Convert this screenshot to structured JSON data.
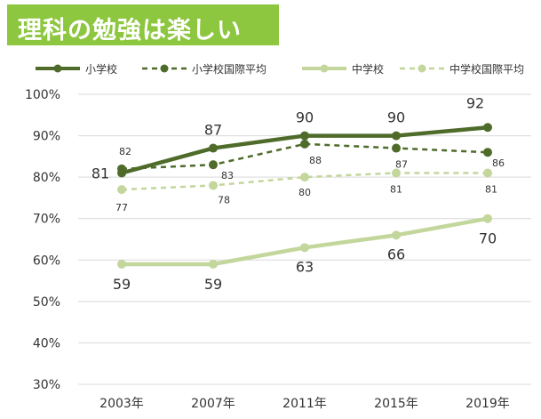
{
  "title": "理科の勉強は楽しい",
  "chart_data": {
    "type": "line",
    "title": "理科の勉強は楽しい",
    "categories": [
      "2003年",
      "2007年",
      "2011年",
      "2015年",
      "2019年"
    ],
    "y_ticks": [
      "30%",
      "40%",
      "50%",
      "60%",
      "70%",
      "80%",
      "90%",
      "100%"
    ],
    "ylim": [
      30,
      100
    ],
    "grid": true,
    "legend_position": "top",
    "series": [
      {
        "name": "小学校",
        "values": [
          81,
          87,
          90,
          90,
          92
        ],
        "labels": [
          "81",
          "87",
          "90",
          "90",
          "92"
        ],
        "color": "#4e6b2a",
        "dashed": false,
        "label_style": "large"
      },
      {
        "name": "小学校国際平均",
        "values": [
          82,
          83,
          88,
          87,
          86
        ],
        "labels": [
          "82",
          "83",
          "88",
          "87",
          "86"
        ],
        "color": "#4e6b2a",
        "dashed": true,
        "label_style": "small"
      },
      {
        "name": "中学校",
        "values": [
          59,
          59,
          63,
          66,
          70
        ],
        "labels": [
          "59",
          "59",
          "63",
          "66",
          "70"
        ],
        "color": "#c3d69b",
        "dashed": false,
        "label_style": "large"
      },
      {
        "name": "中学校国際平均",
        "values": [
          77,
          78,
          80,
          81,
          81
        ],
        "labels": [
          "77",
          "78",
          "80",
          "81",
          "81"
        ],
        "color": "#c3d69b",
        "dashed": true,
        "label_style": "small"
      }
    ]
  }
}
